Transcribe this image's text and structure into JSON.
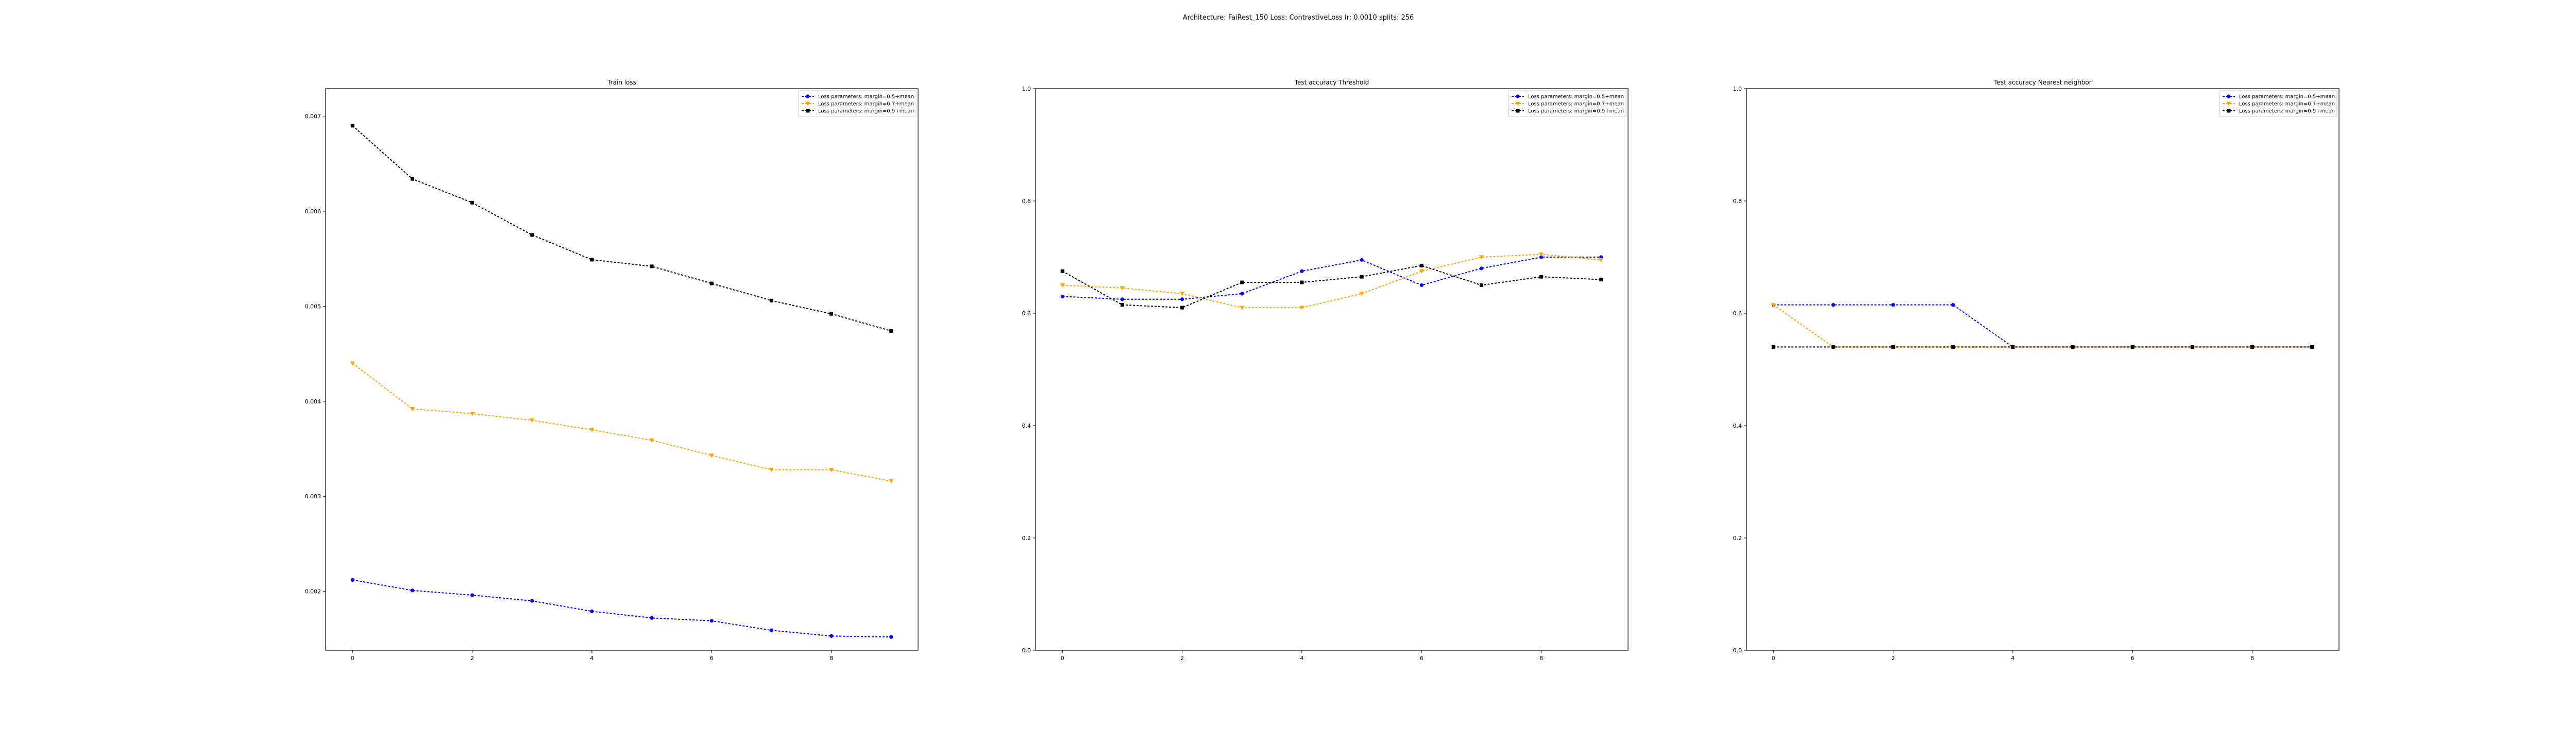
{
  "figure": {
    "suptitle": "Architecture: FaiRest_150 Loss: ContrastiveLoss lr: 0.0010 splits: 256"
  },
  "chart_data": [
    {
      "type": "line",
      "title": "Train loss",
      "xlabel": "",
      "ylabel": "",
      "xlim": [
        -0.45,
        9.45
      ],
      "ylim": [
        0.00138,
        0.00729
      ],
      "xticks": [
        0,
        2,
        4,
        6,
        8
      ],
      "yticks": [
        0.002,
        0.003,
        0.004,
        0.005,
        0.006,
        0.007
      ],
      "ytick_labels": [
        "0.002",
        "0.003",
        "0.004",
        "0.005",
        "0.006",
        "0.007"
      ],
      "grid": false,
      "legend_position": "top-right",
      "x": [
        0,
        1,
        2,
        3,
        4,
        5,
        6,
        7,
        8,
        9
      ],
      "series": [
        {
          "name": "Loss parameters: margin=0.5+mean",
          "color": "#0000ff",
          "marker": "circle",
          "values": [
            0.00212,
            0.00201,
            0.00196,
            0.0019,
            0.00179,
            0.00172,
            0.00169,
            0.00159,
            0.00153,
            0.00152
          ]
        },
        {
          "name": "Loss parameters: margin=0.7+mean",
          "color": "#ffa500",
          "marker": "triangle",
          "values": [
            0.0044,
            0.00392,
            0.00387,
            0.0038,
            0.0037,
            0.00359,
            0.00343,
            0.00328,
            0.00328,
            0.00316
          ]
        },
        {
          "name": "Loss parameters: margin=0.9+mean",
          "color": "#000000",
          "marker": "square",
          "values": [
            0.0069,
            0.00634,
            0.00609,
            0.00575,
            0.00549,
            0.00542,
            0.00524,
            0.00506,
            0.00492,
            0.00474
          ]
        }
      ]
    },
    {
      "type": "line",
      "title": "Test accuracy Threshold",
      "xlabel": "",
      "ylabel": "",
      "xlim": [
        -0.45,
        9.45
      ],
      "ylim": [
        0.0,
        1.0
      ],
      "xticks": [
        0,
        2,
        4,
        6,
        8
      ],
      "yticks": [
        0.0,
        0.2,
        0.4,
        0.6,
        0.8,
        1.0
      ],
      "ytick_labels": [
        "0.0",
        "0.2",
        "0.4",
        "0.6",
        "0.8",
        "1.0"
      ],
      "grid": false,
      "legend_position": "top-right",
      "x": [
        0,
        1,
        2,
        3,
        4,
        5,
        6,
        7,
        8,
        9
      ],
      "series": [
        {
          "name": "Loss parameters: margin=0.5+mean",
          "color": "#0000ff",
          "marker": "circle",
          "values": [
            0.63,
            0.625,
            0.625,
            0.635,
            0.675,
            0.695,
            0.65,
            0.68,
            0.7,
            0.7
          ]
        },
        {
          "name": "Loss parameters: margin=0.7+mean",
          "color": "#ffa500",
          "marker": "triangle",
          "values": [
            0.65,
            0.645,
            0.635,
            0.61,
            0.61,
            0.635,
            0.675,
            0.7,
            0.705,
            0.695
          ]
        },
        {
          "name": "Loss parameters: margin=0.9+mean",
          "color": "#000000",
          "marker": "square",
          "values": [
            0.675,
            0.615,
            0.61,
            0.655,
            0.655,
            0.665,
            0.685,
            0.65,
            0.665,
            0.66
          ]
        }
      ]
    },
    {
      "type": "line",
      "title": "Test accuracy Nearest neighbor",
      "xlabel": "",
      "ylabel": "",
      "xlim": [
        -0.45,
        9.45
      ],
      "ylim": [
        0.0,
        1.0
      ],
      "xticks": [
        0,
        2,
        4,
        6,
        8
      ],
      "yticks": [
        0.0,
        0.2,
        0.4,
        0.6,
        0.8,
        1.0
      ],
      "ytick_labels": [
        "0.0",
        "0.2",
        "0.4",
        "0.6",
        "0.8",
        "1.0"
      ],
      "grid": false,
      "legend_position": "top-right",
      "x": [
        0,
        1,
        2,
        3,
        4,
        5,
        6,
        7,
        8,
        9
      ],
      "series": [
        {
          "name": "Loss parameters: margin=0.5+mean",
          "color": "#0000ff",
          "marker": "circle",
          "values": [
            0.615,
            0.615,
            0.615,
            0.615,
            0.54,
            0.54,
            0.54,
            0.54,
            0.54,
            0.54
          ]
        },
        {
          "name": "Loss parameters: margin=0.7+mean",
          "color": "#ffa500",
          "marker": "triangle",
          "values": [
            0.615,
            0.54,
            0.54,
            0.54,
            0.54,
            0.54,
            0.54,
            0.54,
            0.54,
            0.54
          ]
        },
        {
          "name": "Loss parameters: margin=0.9+mean",
          "color": "#000000",
          "marker": "square",
          "values": [
            0.54,
            0.54,
            0.54,
            0.54,
            0.54,
            0.54,
            0.54,
            0.54,
            0.54,
            0.54
          ]
        }
      ]
    }
  ]
}
